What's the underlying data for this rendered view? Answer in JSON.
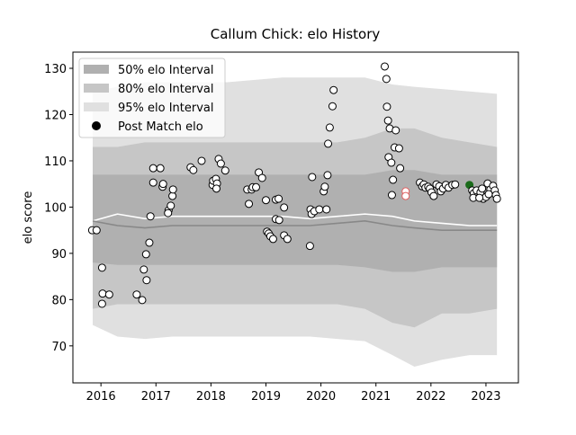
{
  "chart_data": {
    "type": "band_scatter",
    "title": "Callum Chick: elo History",
    "ylabel": "elo score",
    "xlim": [
      2015.49,
      2023.59
    ],
    "ylim": [
      62.0,
      133.5
    ],
    "xticks": [
      2016,
      2017,
      2018,
      2019,
      2020,
      2021,
      2022,
      2023
    ],
    "yticks": [
      70,
      80,
      90,
      100,
      110,
      120,
      130
    ],
    "legend": "upper left",
    "band_x": [
      2015.85,
      2016.3,
      2016.8,
      2017.3,
      2017.8,
      2018.3,
      2018.8,
      2019.3,
      2019.8,
      2020.3,
      2020.8,
      2021.3,
      2021.7,
      2022.2,
      2022.7,
      2023.2
    ],
    "bands": [
      {
        "name": "95% elo Interval",
        "color": "#e0e0e0",
        "upper": [
          125,
          126,
          127,
          127,
          127,
          127,
          127.5,
          128,
          128,
          128,
          128,
          126.5,
          126,
          125.5,
          125,
          124.5
        ],
        "lower": [
          74.5,
          72,
          71.5,
          72,
          72,
          72,
          72,
          72,
          72,
          71.5,
          71,
          68,
          65.5,
          67,
          68,
          68
        ]
      },
      {
        "name": "80% elo Interval",
        "color": "#c6c6c6",
        "upper": [
          113,
          113,
          114,
          114,
          114,
          114,
          114,
          114,
          114,
          114,
          115,
          117,
          117,
          115,
          114,
          113
        ],
        "lower": [
          78,
          79,
          79,
          79,
          79,
          79,
          79,
          79,
          79,
          79,
          78,
          75,
          74,
          77,
          77,
          78
        ]
      },
      {
        "name": "50% elo Interval",
        "color": "#b0b0b0",
        "upper": [
          107,
          107,
          107,
          107,
          107,
          107,
          107,
          107,
          107,
          107,
          107,
          108,
          108,
          107,
          107,
          107
        ],
        "lower": [
          88,
          87.5,
          87.5,
          87.5,
          87.5,
          87.5,
          87.5,
          87.5,
          87.5,
          87.5,
          87,
          86,
          86,
          87,
          87,
          87
        ]
      }
    ],
    "lines": [
      {
        "color": "#ffffff",
        "values": [
          97,
          98.5,
          97.5,
          98,
          98,
          98,
          98,
          98,
          97.5,
          98,
          98.5,
          98,
          97,
          96.5,
          96,
          96
        ]
      },
      {
        "color": "#888888",
        "values": [
          97,
          96,
          95.5,
          96,
          96,
          96,
          96,
          96,
          96,
          96.5,
          97,
          96,
          95.5,
          95,
          95,
          95
        ]
      }
    ],
    "points": {
      "name": "Post Match elo",
      "color": "#000000",
      "fill": "#ffffff",
      "x": [
        2015.84,
        2015.92,
        2016.02,
        2016.03,
        2016.02,
        2016.15,
        2016.65,
        2016.75,
        2016.78,
        2016.82,
        2016.83,
        2016.88,
        2016.9,
        2016.95,
        2017.08,
        2016.95,
        2017.12,
        2017.13,
        2017.23,
        2017.27,
        2017.22,
        2017.3,
        2017.31,
        2017.63,
        2017.68,
        2017.83,
        2018.03,
        2018.04,
        2018.09,
        2018.11,
        2018.14,
        2018.18,
        2018.26,
        2018.1,
        2018.66,
        2018.69,
        2018.74,
        2018.76,
        2018.82,
        2018.87,
        2018.93,
        2019.0,
        2019.02,
        2019.05,
        2019.08,
        2019.13,
        2019.18,
        2019.23,
        2019.18,
        2019.24,
        2019.33,
        2019.33,
        2019.39,
        2019.8,
        2019.81,
        2019.83,
        2019.88,
        2019.97,
        2020.1,
        2019.84,
        2020.05,
        2020.07,
        2020.12,
        2020.13,
        2020.16,
        2020.21,
        2020.23,
        2021.16,
        2021.19,
        2021.2,
        2021.22,
        2021.25,
        2021.36,
        2021.23,
        2021.28,
        2021.34,
        2021.42,
        2021.44,
        2021.31,
        2021.29,
        2021.54,
        2021.54,
        2021.8,
        2021.84,
        2021.87,
        2021.9,
        2021.95,
        2021.98,
        2022.01,
        2022.05,
        2022.1,
        2022.15,
        2022.18,
        2022.22,
        2022.27,
        2022.32,
        2022.39,
        2022.44,
        2022.7,
        2022.75,
        2022.78,
        2022.77,
        2022.83,
        2022.9,
        2022.95,
        2023.0,
        2023.03,
        2023.08,
        2023.13,
        2023.16,
        2023.18,
        2023.2,
        2022.93,
        2022.88,
        2023.05
      ],
      "values": [
        95,
        95,
        86.9,
        81.3,
        79.1,
        81.1,
        81.1,
        79.9,
        86.5,
        89.8,
        84.2,
        92.3,
        98,
        108.4,
        108.4,
        105.3,
        104.4,
        105,
        99.3,
        100.3,
        98.7,
        102.4,
        103.8,
        108.6,
        108,
        110,
        104.8,
        105.7,
        106.1,
        105.1,
        110.4,
        109.4,
        107.9,
        104,
        103.8,
        100.7,
        103.8,
        104.3,
        104.3,
        107.5,
        106.3,
        101.5,
        94.7,
        94.3,
        93.7,
        93.1,
        101.6,
        101.8,
        97.4,
        97.2,
        99.9,
        93.9,
        93.1,
        91.6,
        99.5,
        98.5,
        99.1,
        99.5,
        99.5,
        106.5,
        103.4,
        104.4,
        106.9,
        113.7,
        117.2,
        121.8,
        125.3,
        130.4,
        127.7,
        121.7,
        118.7,
        117,
        116.6,
        110.8,
        109.6,
        112.9,
        112.7,
        108.4,
        105.9,
        102.6,
        103.4,
        102.4,
        105.3,
        104.5,
        104.9,
        104.2,
        104.4,
        104,
        103.2,
        102.4,
        104.9,
        104.5,
        103.4,
        104,
        104.8,
        104.2,
        104.8,
        104.9,
        104.8,
        103.6,
        103,
        102,
        103.6,
        103.2,
        101.8,
        102.2,
        105.1,
        103.8,
        104.6,
        103.6,
        102.6,
        101.8,
        104,
        102,
        102.8
      ],
      "edgecolors": {
        "80": "#e06060",
        "81": "#e06060",
        "98": "#1a6b1a"
      },
      "facecolors": {
        "98": "#1a6b1a"
      }
    }
  }
}
